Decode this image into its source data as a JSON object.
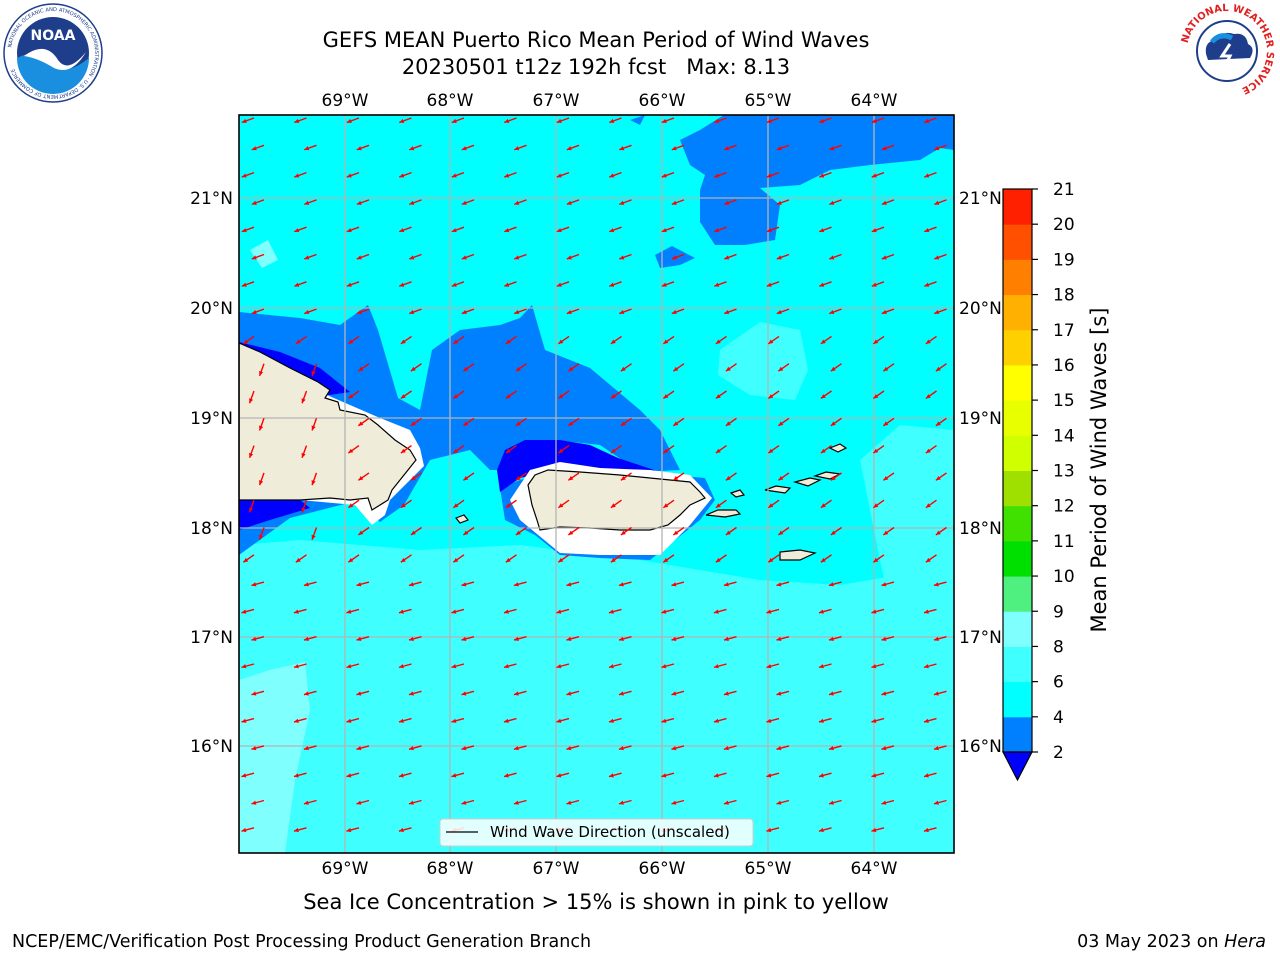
{
  "header": {
    "title_line1": "GEFS MEAN Puerto Rico Mean Period of Wind Waves",
    "title_line2": "20230501 t12z 192h fcst   Max: 8.13"
  },
  "logos": {
    "noaa_text": "NOAA",
    "noaa_ring": "NATIONAL OCEANIC AND ATMOSPHERIC ADMINISTRATION · U.S. DEPARTMENT OF COMMERCE",
    "nws_ring": "NATIONAL WEATHER SERVICE"
  },
  "map": {
    "lon_labels": [
      "69°W",
      "68°W",
      "67°W",
      "66°W",
      "65°W",
      "64°W"
    ],
    "lat_labels": [
      "21°N",
      "20°N",
      "19°N",
      "18°N",
      "17°N",
      "16°N"
    ],
    "legend_label": "Wind Wave Direction (unscaled)",
    "arrow_color": "#ff0000",
    "land_color": "#efedda",
    "wave_colors": {
      "lt2": "#0000ff",
      "2_4": "#0080ff",
      "4_6": "#00ffff",
      "6_8": "#40ffff",
      "8_9": "#80ffff"
    }
  },
  "colorbar": {
    "label": "Mean Period of Wind Waves [s]",
    "ticks": [
      "2",
      "4",
      "6",
      "8",
      "9",
      "10",
      "11",
      "12",
      "13",
      "14",
      "15",
      "16",
      "17",
      "18",
      "19",
      "20",
      "21"
    ],
    "colors": [
      "#0080ff",
      "#00ffff",
      "#40ffff",
      "#80ffff",
      "#50f080",
      "#00e000",
      "#40e000",
      "#a0e000",
      "#d0ff00",
      "#e8ff00",
      "#ffff00",
      "#ffd000",
      "#ffb000",
      "#ff8000",
      "#ff5000",
      "#ff2000"
    ],
    "under_color": "#0000ff"
  },
  "notes": {
    "ice": "Sea Ice Concentration > 15% is shown in pink to yellow"
  },
  "footer": {
    "left": "NCEP/EMC/Verification Post Processing Product Generation Branch",
    "right_prefix": "03 May 2023 on ",
    "right_host": "Hera"
  }
}
